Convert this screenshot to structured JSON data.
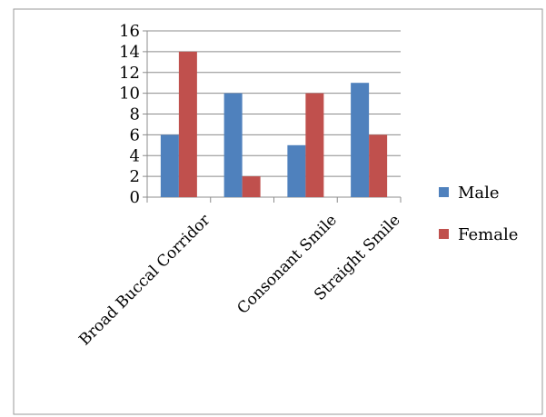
{
  "chart_data": {
    "type": "bar",
    "categories": [
      "Broad Buccal Corridor",
      "",
      "Consonant Smile",
      "Straight Smile"
    ],
    "series": [
      {
        "name": "Male",
        "values": [
          6,
          10,
          5,
          11
        ],
        "color": "#4f81bd"
      },
      {
        "name": "Female",
        "values": [
          14,
          2,
          10,
          6
        ],
        "color": "#c0504d"
      }
    ],
    "yticks": [
      0,
      2,
      4,
      6,
      8,
      10,
      12,
      14,
      16
    ],
    "ylim": [
      0,
      16
    ],
    "grid": true,
    "legend": "right",
    "title": "",
    "xlabel": "",
    "ylabel": ""
  }
}
